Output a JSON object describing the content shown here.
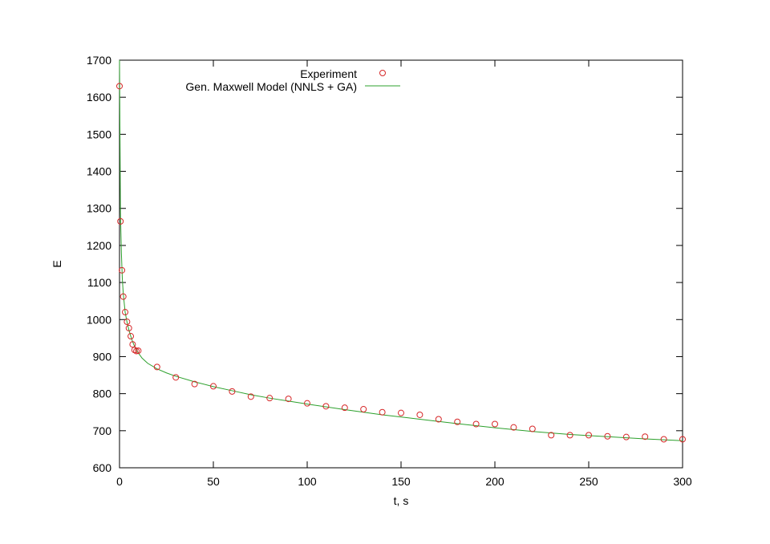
{
  "chart_data": {
    "type": "scatter",
    "title": "",
    "xlabel": "t, s",
    "ylabel": "E",
    "xlim": [
      0,
      300
    ],
    "ylim": [
      600,
      1700
    ],
    "xticks": [
      "0",
      "50",
      "100",
      "150",
      "200",
      "250",
      "300"
    ],
    "yticks": [
      "600",
      "700",
      "800",
      "900",
      "1000",
      "1100",
      "1200",
      "1300",
      "1400",
      "1500",
      "1600",
      "1700"
    ],
    "grid": false,
    "legend_position": "top-center",
    "series": [
      {
        "name": "Experiment",
        "kind": "points",
        "marker": "open-circle",
        "color": "#d62728",
        "x": [
          0,
          0.5,
          1.3,
          2,
          3,
          4,
          5,
          6,
          7,
          8,
          9,
          10,
          20,
          30,
          40,
          50,
          60,
          70,
          80,
          90,
          100,
          110,
          120,
          130,
          140,
          150,
          160,
          170,
          180,
          190,
          200,
          210,
          220,
          230,
          240,
          250,
          260,
          270,
          280,
          290,
          300
        ],
        "y": [
          1630,
          1265,
          1133,
          1062,
          1020,
          994,
          977,
          955,
          933,
          918,
          915,
          916,
          872,
          844,
          826,
          820,
          806,
          792,
          788,
          786,
          774,
          766,
          762,
          758,
          750,
          748,
          743,
          731,
          724,
          718,
          718,
          709,
          705,
          688,
          688,
          688,
          685,
          683,
          684,
          677,
          677
        ]
      },
      {
        "name": "Gen. Maxwell Model (NNLS + GA)",
        "kind": "line",
        "color": "#2ca02c",
        "x": [
          0,
          0.5,
          1,
          1.5,
          2,
          3,
          4,
          5,
          6,
          7,
          8,
          9,
          10,
          12,
          15,
          20,
          25,
          30,
          40,
          50,
          60,
          70,
          80,
          90,
          100,
          120,
          140,
          160,
          180,
          200,
          220,
          240,
          260,
          280,
          300
        ],
        "y": [
          1700,
          1290,
          1180,
          1110,
          1070,
          1020,
          993,
          972,
          955,
          940,
          928,
          918,
          910,
          896,
          882,
          867,
          856,
          847,
          832,
          819,
          808,
          797,
          788,
          780,
          772,
          757,
          743,
          731,
          719,
          708,
          698,
          690,
          684,
          678,
          673
        ]
      }
    ]
  }
}
